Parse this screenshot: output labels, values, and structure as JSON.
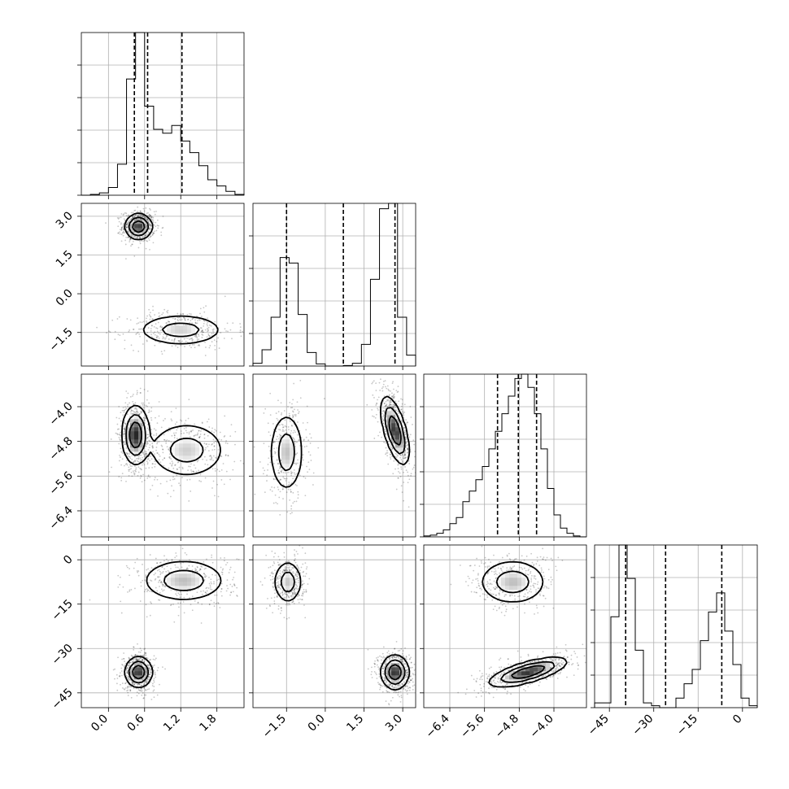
{
  "chart_data": {
    "type": "corner",
    "parameters": [
      {
        "range": [
          -0.45,
          2.25
        ],
        "ticks": [
          0.0,
          0.6,
          1.2,
          1.8
        ],
        "tick_labels": [
          "0.0",
          "0.6",
          "1.2",
          "1.8"
        ],
        "quantiles": [
          0.43,
          0.65,
          1.22
        ]
      },
      {
        "range": [
          -2.8,
          3.5
        ],
        "ticks": [
          -1.5,
          0.0,
          1.5,
          3.0
        ],
        "tick_labels": [
          "−1.5",
          "0.0",
          "1.5",
          "3.0"
        ],
        "quantiles": [
          -1.5,
          0.7,
          2.7
        ]
      },
      {
        "range": [
          -7.0,
          -3.25
        ],
        "ticks": [
          -6.4,
          -5.6,
          -4.8,
          -4.0
        ],
        "tick_labels": [
          "−6.4",
          "−5.6",
          "−4.8",
          "−4.0"
        ],
        "quantiles": [
          -5.3,
          -4.82,
          -4.4
        ]
      },
      {
        "range": [
          -50.0,
          5.0
        ],
        "ticks": [
          -45,
          -30,
          -15,
          0
        ],
        "tick_labels": [
          "−45",
          "−30",
          "−15",
          "0"
        ],
        "quantiles": [
          -39.5,
          -26.0,
          -7.0
        ]
      }
    ],
    "histograms": [
      {
        "param": 0,
        "edges": [
          -0.45,
          -0.3,
          -0.15,
          0.0,
          0.15,
          0.3,
          0.45,
          0.6,
          0.75,
          0.9,
          1.05,
          1.2,
          1.35,
          1.5,
          1.65,
          1.8,
          1.95,
          2.1,
          2.25
        ],
        "counts": [
          0,
          1,
          3,
          10,
          40,
          150,
          210,
          115,
          85,
          80,
          90,
          70,
          55,
          38,
          20,
          12,
          5,
          1
        ]
      },
      {
        "param": 1,
        "edges": [
          -2.8,
          -2.45,
          -2.1,
          -1.75,
          -1.4,
          -1.05,
          -0.7,
          -0.35,
          0.0,
          0.35,
          0.7,
          1.05,
          1.4,
          1.75,
          2.1,
          2.45,
          2.8,
          3.15,
          3.5
        ],
        "counts": [
          5,
          30,
          90,
          200,
          190,
          95,
          25,
          4,
          0,
          0,
          1,
          5,
          40,
          160,
          290,
          300,
          90,
          20
        ]
      },
      {
        "param": 2,
        "edges": [
          -7.0,
          -6.85,
          -6.7,
          -6.55,
          -6.4,
          -6.25,
          -6.1,
          -5.95,
          -5.8,
          -5.65,
          -5.5,
          -5.35,
          -5.2,
          -5.05,
          -4.9,
          -4.75,
          -4.6,
          -4.45,
          -4.3,
          -4.15,
          -4.0,
          -3.85,
          -3.7,
          -3.55,
          -3.4,
          -3.25
        ],
        "counts": [
          1,
          2,
          4,
          8,
          15,
          22,
          40,
          52,
          65,
          80,
          100,
          120,
          140,
          160,
          180,
          185,
          170,
          140,
          100,
          55,
          25,
          10,
          4,
          1,
          0
        ]
      },
      {
        "param": 3,
        "edges": [
          -50,
          -47.25,
          -44.5,
          -41.75,
          -39,
          -36.25,
          -33.5,
          -30.75,
          -28,
          -25.25,
          -22.5,
          -19.75,
          -17,
          -14.25,
          -11.5,
          -8.75,
          -6,
          -3.25,
          -0.5,
          2.25,
          5
        ],
        "counts": [
          5,
          5,
          95,
          170,
          135,
          60,
          5,
          2,
          0,
          0,
          10,
          25,
          40,
          70,
          100,
          120,
          80,
          45,
          10,
          2
        ]
      }
    ],
    "pairs": [
      {
        "x": 0,
        "y": 1,
        "modes": [
          {
            "center": [
              0.5,
              2.6
            ],
            "sd": [
              0.1,
              0.22
            ],
            "rho": 0,
            "peak": 1.0
          },
          {
            "center": [
              1.2,
              -1.4
            ],
            "sd": [
              0.33,
              0.28
            ],
            "rho": 0,
            "peak": 0.45
          }
        ]
      },
      {
        "x": 0,
        "y": 2,
        "modes": [
          {
            "center": [
              0.45,
              -4.65
            ],
            "sd": [
              0.1,
              0.3
            ],
            "rho": 0,
            "peak": 0.95
          },
          {
            "center": [
              1.3,
              -5.0
            ],
            "sd": [
              0.3,
              0.3
            ],
            "rho": 0,
            "peak": 0.42
          }
        ]
      },
      {
        "x": 1,
        "y": 2,
        "modes": [
          {
            "center": [
              -1.5,
              -5.05
            ],
            "sd": [
              0.3,
              0.42
            ],
            "rho": 0,
            "peak": 0.5
          },
          {
            "center": [
              2.7,
              -4.55
            ],
            "sd": [
              0.24,
              0.35
            ],
            "rho": -0.6,
            "peak": 1.0
          }
        ]
      },
      {
        "x": 0,
        "y": 3,
        "modes": [
          {
            "center": [
              1.25,
              -7.0
            ],
            "sd": [
              0.32,
              3.3
            ],
            "rho": 0,
            "peak": 0.5
          },
          {
            "center": [
              0.5,
              -38.0
            ],
            "sd": [
              0.1,
              2.3
            ],
            "rho": 0,
            "peak": 1.0
          }
        ]
      },
      {
        "x": 1,
        "y": 3,
        "modes": [
          {
            "center": [
              -1.45,
              -7.5
            ],
            "sd": [
              0.25,
              3.3
            ],
            "rho": 0,
            "peak": 0.5
          },
          {
            "center": [
              2.7,
              -38.0
            ],
            "sd": [
              0.24,
              2.6
            ],
            "rho": 0,
            "peak": 1.0
          }
        ]
      },
      {
        "x": 2,
        "y": 3,
        "modes": [
          {
            "center": [
              -4.95,
              -7.5
            ],
            "sd": [
              0.36,
              3.5
            ],
            "rho": 0,
            "peak": 0.5
          },
          {
            "center": [
              -4.6,
              -38.0
            ],
            "sd": [
              0.4,
              2.2
            ],
            "rho": 0.7,
            "peak": 1.0
          }
        ]
      }
    ]
  }
}
